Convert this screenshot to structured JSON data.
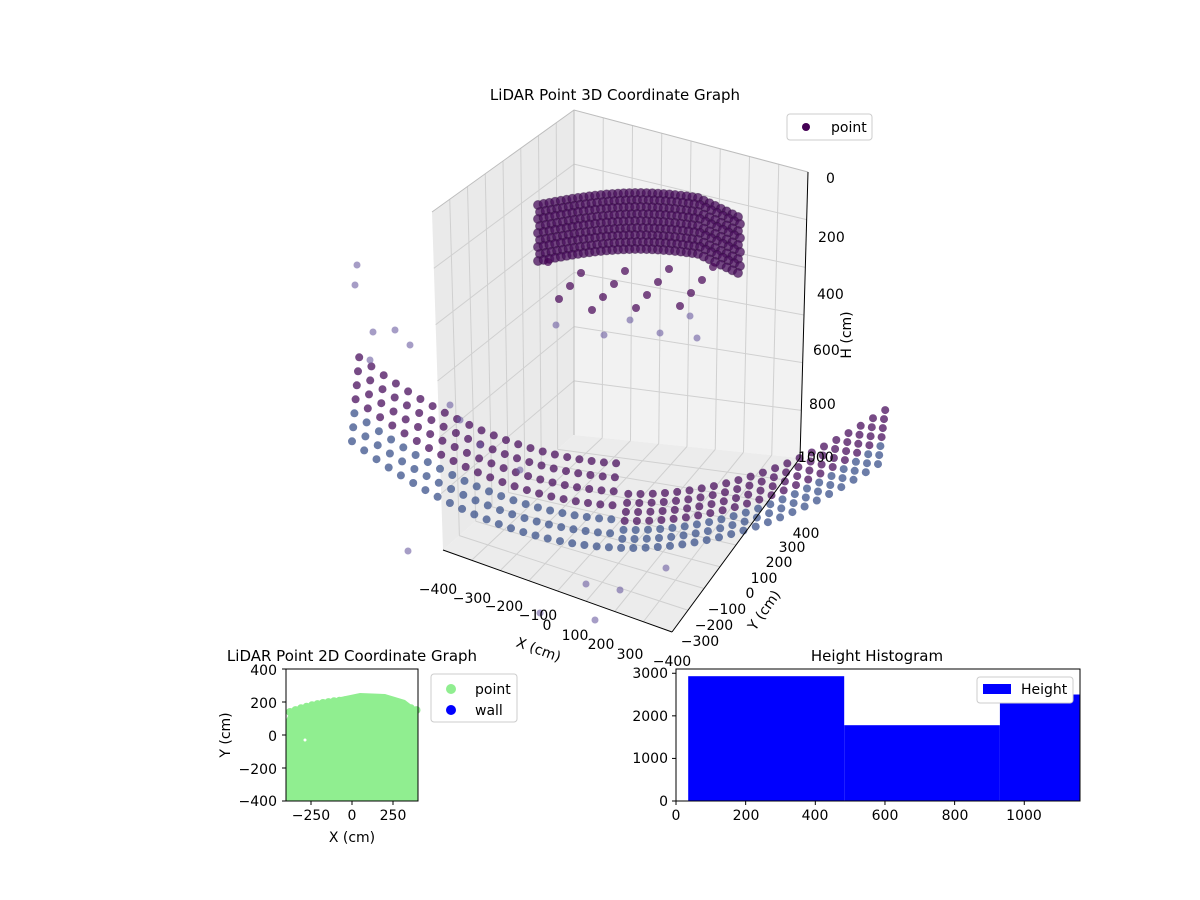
{
  "chart_data": [
    {
      "type": "scatter3d",
      "title": "LiDAR Point 3D Coordinate Graph",
      "xlabel": "X (cm)",
      "ylabel": "Y (cm)",
      "zlabel": "H (cm)",
      "xticks": [
        "−400",
        "−300",
        "−200",
        "−100",
        "0",
        "100",
        "200",
        "300"
      ],
      "yticks": [
        "−400",
        "−300",
        "−200",
        "−100",
        "0",
        "100",
        "200",
        "300",
        "400"
      ],
      "zticks": [
        "0",
        "200",
        "400",
        "600",
        "800",
        "1000"
      ],
      "xlim": [
        -400,
        400
      ],
      "ylim": [
        -400,
        400
      ],
      "zlim": [
        0,
        1000
      ],
      "zaxis_inverted": true,
      "grid": true,
      "legend": {
        "placement": "top-right",
        "entries": [
          "point"
        ]
      },
      "colors": {
        "point": "#440154",
        "top_cluster": "#4a0f5e",
        "floor_cluster": "#3b528b",
        "pane": "#f2f2f2",
        "grid": "#d8d8d8"
      },
      "series": [
        {
          "name": "point",
          "description_clusters": [
            "ceiling",
            "floor"
          ]
        }
      ]
    },
    {
      "type": "scatter",
      "title": "LiDAR Point 2D Coordinate Graph",
      "xlabel": "X (cm)",
      "ylabel": "Y (cm)",
      "xticks": [
        "−250",
        "0",
        "250"
      ],
      "yticks": [
        "400",
        "200",
        "0",
        "−200",
        "−400"
      ],
      "xlim": [
        -400,
        400
      ],
      "ylim": [
        -400,
        400
      ],
      "legend": {
        "placement": "outside-right",
        "entries": [
          "point",
          "wall"
        ]
      },
      "series": [
        {
          "name": "point",
          "color": "#90ee90"
        },
        {
          "name": "wall",
          "color": "#0000ff"
        }
      ]
    },
    {
      "type": "bar",
      "title": "Height Histogram",
      "xticks": [
        "0",
        "200",
        "400",
        "600",
        "800",
        "1000"
      ],
      "yticks": [
        "0",
        "1000",
        "2000",
        "3000"
      ],
      "xlim": [
        0,
        1160
      ],
      "ylim": [
        0,
        3100
      ],
      "legend": {
        "placement": "top-right",
        "entries": [
          "Height"
        ]
      },
      "series": [
        {
          "name": "Height",
          "color": "#0000ff",
          "bins": [
            {
              "start": 35,
              "end": 483,
              "count": 2930
            },
            {
              "start": 483,
              "end": 930,
              "count": 1780
            },
            {
              "start": 930,
              "end": 1160,
              "count": 2500
            }
          ]
        }
      ]
    }
  ]
}
